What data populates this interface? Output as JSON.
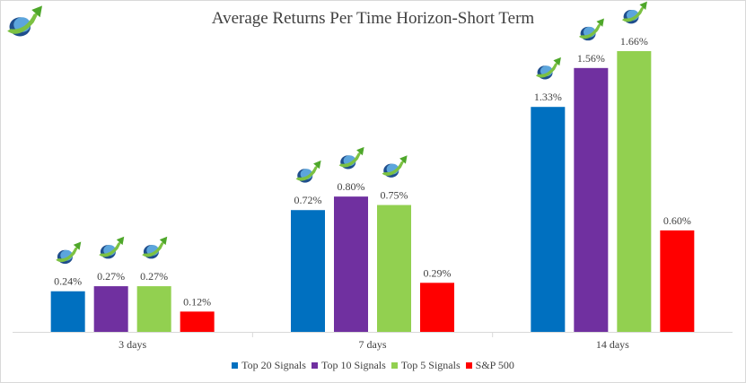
{
  "chart_data": {
    "type": "bar",
    "title": "Average Returns Per Time Horizon-Short Term",
    "categories": [
      "3 days",
      "7 days",
      "14 days"
    ],
    "series": [
      {
        "name": "Top 20 Signals",
        "values": [
          0.24,
          0.72,
          1.33
        ],
        "labels": [
          "0.24%",
          "0.72%",
          "1.33%"
        ],
        "color": "#0070c0"
      },
      {
        "name": "Top 10 Signals",
        "values": [
          0.27,
          0.8,
          1.56
        ],
        "labels": [
          "0.27%",
          "0.80%",
          "1.56%"
        ],
        "color": "#7030a0"
      },
      {
        "name": "Top 5 Signals",
        "values": [
          0.27,
          0.75,
          1.66
        ],
        "labels": [
          "0.27%",
          "0.75%",
          "1.66%"
        ],
        "color": "#92d050"
      },
      {
        "name": "S&P 500",
        "values": [
          0.12,
          0.29,
          0.6
        ],
        "labels": [
          "0.12%",
          "0.29%",
          "0.60%"
        ],
        "color": "#ff0000"
      }
    ],
    "ylim": [
      0,
      1.75
    ],
    "grid": false,
    "legend_position": "bottom",
    "logo_on_series": [
      0,
      1,
      2
    ]
  },
  "icons": {
    "logo": "swoosh-arrow-logo-icon"
  }
}
